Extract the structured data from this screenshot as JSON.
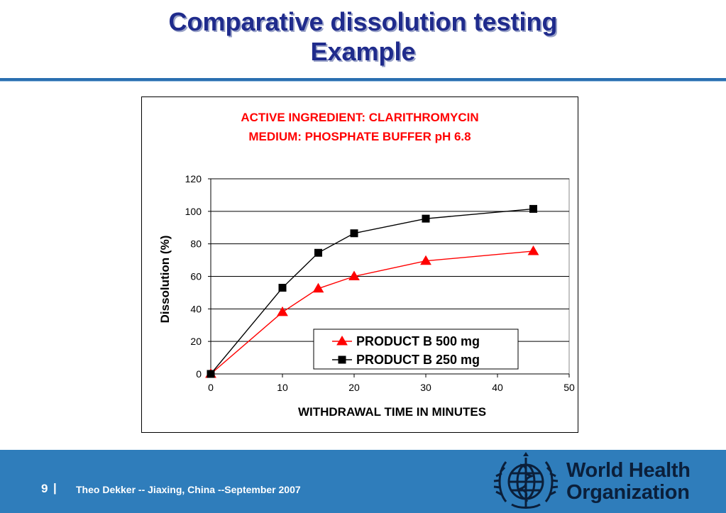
{
  "slide": {
    "title_line1": "Comparative dissolution testing",
    "title_line2": "Example"
  },
  "chart_data": {
    "type": "line",
    "title_lines": [
      "ACTIVE INGREDIENT:  CLARITHROMYCIN",
      "MEDIUM:  PHOSPHATE BUFFER pH 6.8"
    ],
    "title_color": "#ff0000",
    "xlabel": "WITHDRAWAL TIME IN MINUTES",
    "ylabel": "Dissolution (%)",
    "xlim": [
      0,
      50
    ],
    "ylim": [
      0,
      120
    ],
    "xticks": [
      0,
      10,
      20,
      30,
      40,
      50
    ],
    "yticks": [
      0,
      20,
      40,
      60,
      80,
      100,
      120
    ],
    "grid": "horizontal",
    "legend_position": "bottom-center",
    "series": [
      {
        "name": "PRODUCT B 500 mg",
        "color": "#ff0000",
        "marker": "triangle",
        "x": [
          0,
          10,
          15,
          20,
          30,
          45
        ],
        "y": [
          0,
          38,
          52.5,
          60,
          69.5,
          75.5
        ]
      },
      {
        "name": "PRODUCT B 250 mg",
        "color": "#000000",
        "marker": "square",
        "x": [
          0,
          10,
          15,
          20,
          30,
          45
        ],
        "y": [
          0,
          53,
          74.5,
          86.5,
          95.5,
          101.5
        ]
      }
    ]
  },
  "footer": {
    "page_number": "9",
    "separator": "|",
    "credit": "Theo Dekker   --   Jiaxing, China   --September 2007",
    "logo_line1": "World Health",
    "logo_line2": "Organization",
    "background": "#2f7dbb"
  }
}
